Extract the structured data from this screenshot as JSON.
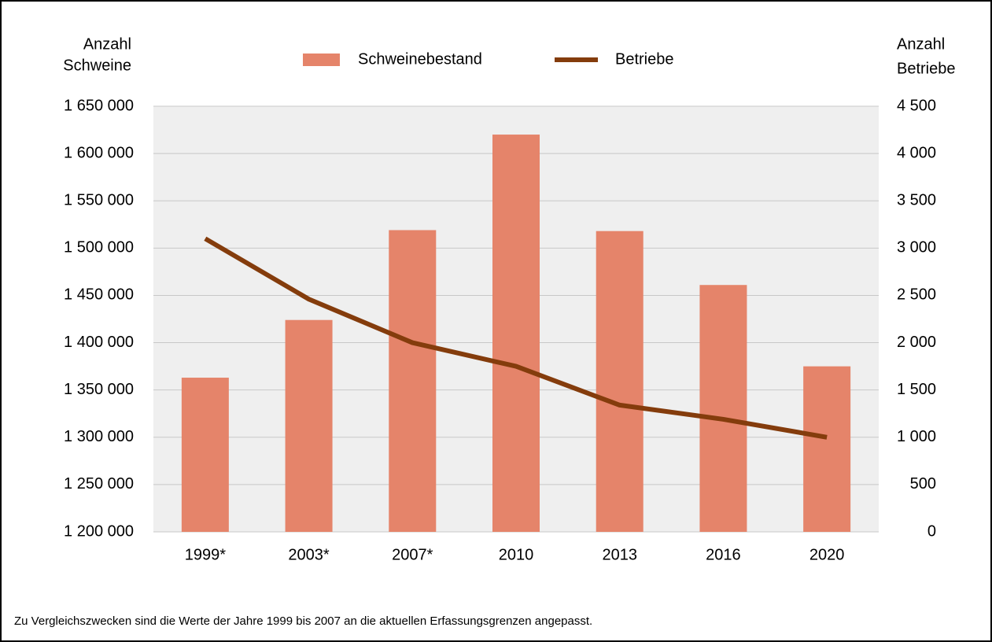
{
  "chart_data": {
    "type": "bar_line",
    "categories": [
      "1999*",
      "2003*",
      "2007*",
      "2010",
      "2013",
      "2016",
      "2020"
    ],
    "series": [
      {
        "name": "Schweinebestand",
        "color": "#e5846a",
        "type": "bar",
        "axis": "y",
        "values": [
          1363000,
          1424000,
          1519000,
          1620000,
          1518000,
          1461000,
          1375000
        ]
      },
      {
        "name": "Betriebe",
        "color": "#843c0c",
        "type": "line",
        "axis": "y2",
        "values": [
          3100,
          2460,
          2000,
          1750,
          1340,
          1190,
          1000
        ]
      }
    ],
    "ylabel": [
      "Anzahl",
      "Schweine"
    ],
    "y2label": [
      "Anzahl",
      "Betriebe"
    ],
    "ylim": [
      1200000,
      1650000
    ],
    "yticks": [
      {
        "value": 1200000,
        "label": "1 200 000"
      },
      {
        "value": 1250000,
        "label": "1 250 000"
      },
      {
        "value": 1300000,
        "label": "1 300 000"
      },
      {
        "value": 1350000,
        "label": "1 350 000"
      },
      {
        "value": 1400000,
        "label": "1 400 000"
      },
      {
        "value": 1450000,
        "label": "1 450 000"
      },
      {
        "value": 1500000,
        "label": "1 500 000"
      },
      {
        "value": 1550000,
        "label": "1 550 000"
      },
      {
        "value": 1600000,
        "label": "1 600 000"
      },
      {
        "value": 1650000,
        "label": "1 650 000"
      }
    ],
    "y2lim": [
      0,
      4500
    ],
    "y2ticks": [
      0,
      500,
      {
        "value": 1000,
        "label": "1 000"
      },
      {
        "value": 1500,
        "label": "1 500"
      },
      {
        "value": 2000,
        "label": "2 000"
      },
      {
        "value": 2500,
        "label": "2 500"
      },
      {
        "value": 3000,
        "label": "3 000"
      },
      {
        "value": 3500,
        "label": "3 500"
      },
      {
        "value": 4000,
        "label": "4 000"
      },
      {
        "value": 4500,
        "label": "4 500"
      }
    ],
    "grid": true,
    "legend": "top",
    "footnote": "Zu Vergleichszwecken sind die Werte der Jahre 1999 bis 2007 an die aktuellen Erfassungsgrenzen angepasst."
  }
}
